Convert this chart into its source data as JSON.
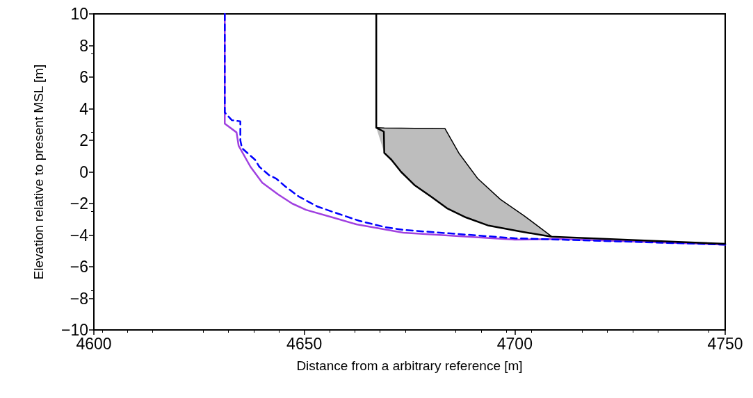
{
  "chart_data": {
    "type": "line",
    "xlabel": "Distance from a arbitrary reference [m]",
    "ylabel": "Elevation relative to present MSL [m]",
    "xlim": [
      4600,
      4750
    ],
    "xticks": [
      4600,
      4650,
      4700,
      4750
    ],
    "ylim": [
      -10,
      10
    ],
    "yticks": [
      {
        "value": -10,
        "label": "−10"
      },
      {
        "value": -8,
        "label": "−8"
      },
      {
        "value": -6,
        "label": "−6"
      },
      {
        "value": -4,
        "label": "−4"
      },
      {
        "value": -2,
        "label": "−2"
      },
      0,
      2,
      4,
      6,
      8,
      10
    ],
    "grid": false,
    "marker": "none",
    "series": [
      {
        "color": "#000000",
        "line_style": "solid",
        "x": [
          4667.1,
          4669.0,
          4673,
          4676.3,
          4680.1,
          4683.4,
          4686.7,
          4691.2,
          4696.6,
          4702.1,
          4708.7
        ],
        "values": [
          2.8,
          2.78,
          2.77,
          2.76,
          2.76,
          2.75,
          1.2,
          -0.42,
          -1.74,
          -2.75,
          -4.07
        ],
        "lower": [
          2.8,
          1.2,
          0.0,
          -0.86,
          -1.56,
          -2.2,
          -2.66,
          -3.15,
          -3.55,
          -3.8,
          -4.07
        ],
        "upper": [
          2.8,
          2.78,
          2.77,
          2.76,
          2.76,
          2.75,
          1.2,
          -0.42,
          -1.74,
          -2.75,
          -4.07
        ]
      },
      {
        "color": "#a040e0",
        "line_style": "solid",
        "x": [
          4631.1,
          4631.1,
          4633.9,
          4634.4,
          4637.2,
          4640,
          4643.8,
          4647.1,
          4650.4,
          4657,
          4662.4,
          4673.5,
          4700,
          4710,
          4750
        ],
        "values": [
          10,
          3.05,
          2.5,
          1.65,
          0.33,
          -0.68,
          -1.43,
          -2.0,
          -2.4,
          -2.9,
          -3.32,
          -3.85,
          -4.29,
          -4.24,
          -4.6
        ]
      },
      {
        "color": "#0000ff",
        "line_style": "dashed",
        "x": [
          4631.1,
          4631.1,
          4632.8,
          4634.8,
          4634.8,
          4635.2,
          4638.3,
          4639.3,
          4641.6,
          4643.3,
          4645.4,
          4648.7,
          4653.2,
          4658.2,
          4663.1,
          4669.1,
          4673.5,
          4700,
          4750
        ],
        "values": [
          10,
          3.76,
          3.27,
          3.2,
          2.0,
          1.5,
          0.77,
          0.33,
          -0.2,
          -0.42,
          -0.9,
          -1.56,
          -2.2,
          -2.66,
          -3.1,
          -3.49,
          -3.67,
          -4.2,
          -4.6
        ]
      },
      {
        "color": "#000000",
        "line_style": "solid",
        "x": [
          4667.1,
          4667.1,
          4668.9,
          4669.0,
          4670.7,
          4673,
          4676.3,
          4680.1,
          4683.9,
          4688.4,
          4693.8,
          4701.1,
          4708.7,
          4750
        ],
        "values": [
          10,
          2.8,
          2.55,
          1.2,
          0.77,
          0,
          -0.86,
          -1.56,
          -2.3,
          -2.88,
          -3.4,
          -3.76,
          -4.1,
          -4.55
        ]
      }
    ]
  }
}
